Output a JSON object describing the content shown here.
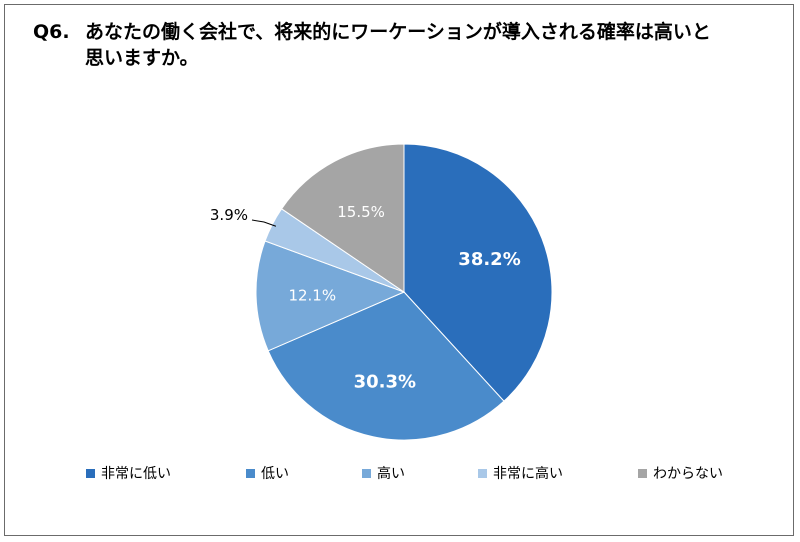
{
  "title": {
    "question_no": "Q6.",
    "line1": "あなたの働く会社で、将来的にワーケーションが導入される確率は高いと",
    "line2": "思いますか。"
  },
  "chart_data": {
    "type": "pie",
    "title": "Q6. あなたの働く会社で、将来的にワーケーションが導入される確率は高いと思いますか。",
    "start_angle_deg": 0,
    "direction": "clockwise",
    "legend_position": "bottom",
    "slices": [
      {
        "label": "非常に低い",
        "value": 38.2,
        "display": "38.2%",
        "color": "#2a6ebb",
        "label_style": "bold-white"
      },
      {
        "label": "低い",
        "value": 30.3,
        "display": "30.3%",
        "color": "#4a8bcb",
        "label_style": "bold-white"
      },
      {
        "label": "高い",
        "value": 12.1,
        "display": "12.1%",
        "color": "#77a9d9",
        "label_style": "white"
      },
      {
        "label": "非常に高い",
        "value": 3.9,
        "display": "3.9%",
        "color": "#a9c8e8",
        "label_style": "outside"
      },
      {
        "label": "わからない",
        "value": 15.5,
        "display": "15.5%",
        "color": "#a5a5a5",
        "label_style": "white"
      }
    ]
  }
}
